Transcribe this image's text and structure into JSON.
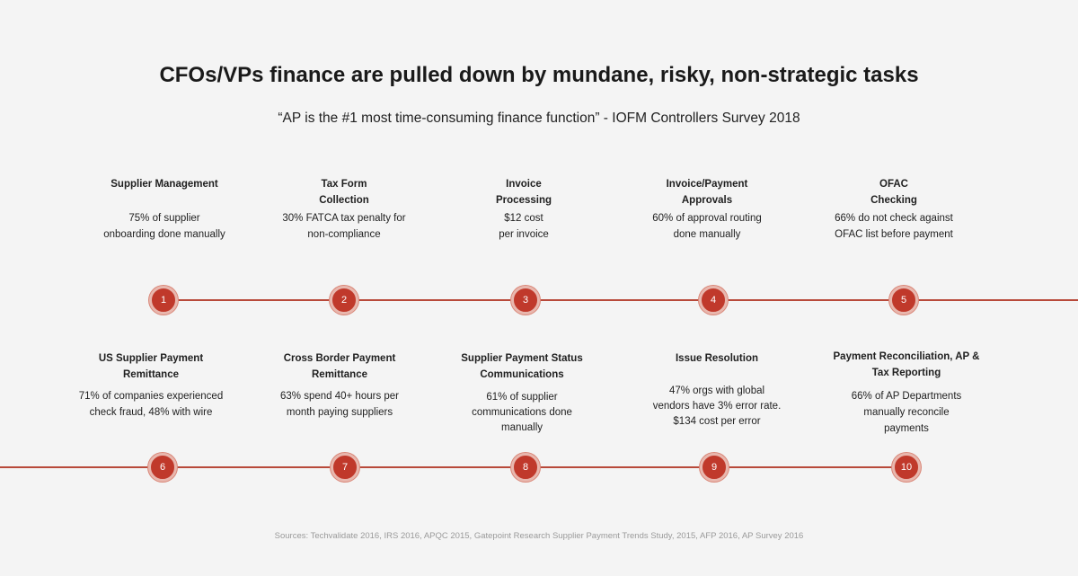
{
  "title": "CFOs/VPs finance are pulled down by mundane, risky, non-strategic tasks",
  "subtitle": "“AP is the #1 most time-consuming finance function” - IOFM Controllers Survey 2018",
  "colors": {
    "accent": "#c0392b",
    "line": "#b8493a",
    "background": "#f4f4f4"
  },
  "top_items": [
    {
      "number": "1",
      "heading": "Supplier Management",
      "desc": "75% of supplier\nonboarding done manually"
    },
    {
      "number": "2",
      "heading": "Tax Form\nCollection",
      "desc": "30% FATCA tax penalty for\nnon-compliance"
    },
    {
      "number": "3",
      "heading": "Invoice\nProcessing",
      "desc": "$12 cost\nper invoice"
    },
    {
      "number": "4",
      "heading": "Invoice/Payment\nApprovals",
      "desc": "60% of approval routing\ndone manually"
    },
    {
      "number": "5",
      "heading": "OFAC\nChecking",
      "desc": "66% do not check against\nOFAC list before payment"
    }
  ],
  "bottom_items": [
    {
      "number": "6",
      "heading": "US Supplier Payment\nRemittance",
      "desc": "71% of companies experienced\ncheck fraud, 48% with wire"
    },
    {
      "number": "7",
      "heading": "Cross Border Payment\nRemittance",
      "desc": "63% spend 40+ hours per\nmonth paying suppliers"
    },
    {
      "number": "8",
      "heading": "Supplier Payment Status\nCommunications",
      "desc": "61% of supplier\ncommunications done\nmanually"
    },
    {
      "number": "9",
      "heading": "Issue Resolution",
      "desc": "47% orgs with global\nvendors have 3% error rate.\n$134 cost per error"
    },
    {
      "number": "10",
      "heading": "Payment Reconciliation, AP &\nTax Reporting",
      "desc": "66% of AP Departments\nmanually reconcile\npayments"
    }
  ],
  "sources": "Sources: Techvalidate 2016, IRS 2016, APQC 2015, Gatepoint Research Supplier Payment Trends Study, 2015, AFP 2016, AP Survey 2016"
}
